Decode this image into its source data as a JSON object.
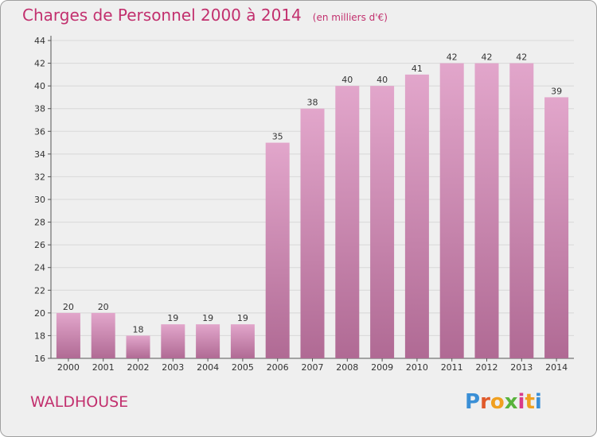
{
  "header": {
    "title": "Charges de Personnel 2000 à 2014",
    "subtitle": "(en milliers d'€)"
  },
  "footer": {
    "place": "WALDHOUSE",
    "logo": "Proxiti"
  },
  "colors": {
    "bar_top": "#e2a6cb",
    "bar_bottom": "#b06a94",
    "accent": "#c2306e",
    "grid": "#d8d8d8"
  },
  "chart_data": {
    "type": "bar",
    "title": "Charges de Personnel 2000 à 2014",
    "subtitle": "(en milliers d'€)",
    "categories": [
      "2000",
      "2001",
      "2002",
      "2003",
      "2004",
      "2005",
      "2006",
      "2007",
      "2008",
      "2009",
      "2010",
      "2011",
      "2012",
      "2013",
      "2014"
    ],
    "values": [
      20,
      20,
      18,
      19,
      19,
      19,
      35,
      38,
      40,
      40,
      41,
      42,
      42,
      42,
      39
    ],
    "ylim": [
      16,
      44
    ],
    "yticks": [
      16,
      18,
      20,
      22,
      24,
      26,
      28,
      30,
      32,
      34,
      36,
      38,
      40,
      42,
      44
    ],
    "xlabel": "",
    "ylabel": "",
    "grid": true,
    "data_labels": true
  }
}
